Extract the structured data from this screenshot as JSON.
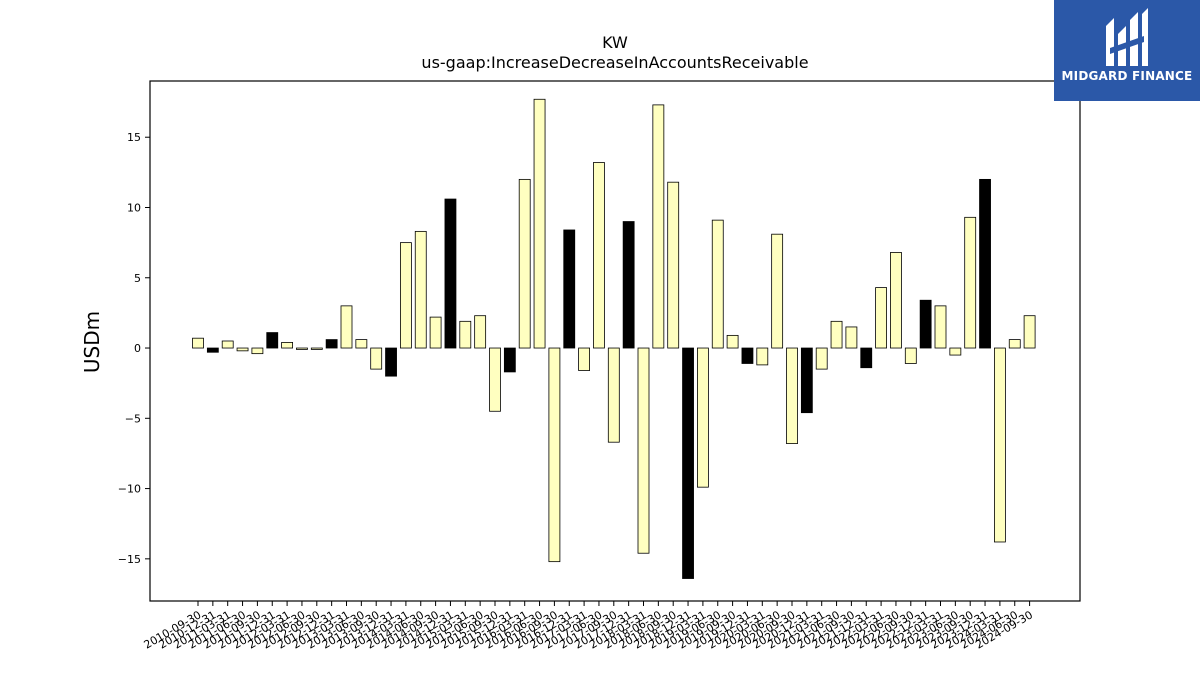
{
  "chart_data": {
    "type": "bar",
    "title": "KW",
    "subtitle": "us-gaap:IncreaseDecreaseInAccountsReceivable",
    "ylabel": "USDm",
    "xlabel": "",
    "ylim": [
      -18,
      19
    ],
    "yticks": [
      -15,
      -10,
      -5,
      0,
      5,
      10,
      15
    ],
    "grid": false,
    "colors": {
      "quarter": "#ffffc0",
      "annual": "#000000",
      "edge": "#000000"
    },
    "bars": [
      {
        "label": "2010-09-30",
        "value": 0.7,
        "kind": "quarter"
      },
      {
        "label": "2010-12-31",
        "value": -0.3,
        "kind": "annual"
      },
      {
        "label": "2011-03-31",
        "value": 0.5,
        "kind": "quarter"
      },
      {
        "label": "2011-06-30",
        "value": -0.2,
        "kind": "quarter"
      },
      {
        "label": "2011-09-30",
        "value": -0.4,
        "kind": "quarter"
      },
      {
        "label": "2011-12-31",
        "value": 1.1,
        "kind": "annual"
      },
      {
        "label": "2012-03-31",
        "value": 0.4,
        "kind": "quarter"
      },
      {
        "label": "2012-06-30",
        "value": -0.1,
        "kind": "quarter"
      },
      {
        "label": "2012-09-30",
        "value": -0.1,
        "kind": "quarter"
      },
      {
        "label": "2012-12-31",
        "value": 0.6,
        "kind": "annual"
      },
      {
        "label": "2013-03-31",
        "value": 3.0,
        "kind": "quarter"
      },
      {
        "label": "2013-06-30",
        "value": 0.6,
        "kind": "quarter"
      },
      {
        "label": "2013-09-30",
        "value": -1.5,
        "kind": "quarter"
      },
      {
        "label": "2013-12-31",
        "value": -2.0,
        "kind": "annual"
      },
      {
        "label": "2014-03-31",
        "value": 7.5,
        "kind": "quarter"
      },
      {
        "label": "2014-06-30",
        "value": 8.3,
        "kind": "quarter"
      },
      {
        "label": "2014-09-30",
        "value": 2.2,
        "kind": "quarter"
      },
      {
        "label": "2014-12-31",
        "value": 10.6,
        "kind": "annual"
      },
      {
        "label": "2015-03-31",
        "value": 1.9,
        "kind": "quarter"
      },
      {
        "label": "2015-06-30",
        "value": 2.3,
        "kind": "quarter"
      },
      {
        "label": "2015-09-30",
        "value": -4.5,
        "kind": "quarter"
      },
      {
        "label": "2015-12-31",
        "value": -1.7,
        "kind": "annual"
      },
      {
        "label": "2016-03-31",
        "value": 12.0,
        "kind": "quarter"
      },
      {
        "label": "2016-06-30",
        "value": 17.7,
        "kind": "quarter"
      },
      {
        "label": "2016-09-30",
        "value": -15.2,
        "kind": "quarter"
      },
      {
        "label": "2016-12-31",
        "value": 8.4,
        "kind": "annual"
      },
      {
        "label": "2017-03-31",
        "value": -1.6,
        "kind": "quarter"
      },
      {
        "label": "2017-06-30",
        "value": 13.2,
        "kind": "quarter"
      },
      {
        "label": "2017-09-30",
        "value": -6.7,
        "kind": "quarter"
      },
      {
        "label": "2017-12-31",
        "value": 9.0,
        "kind": "annual"
      },
      {
        "label": "2018-03-31",
        "value": -14.6,
        "kind": "quarter"
      },
      {
        "label": "2018-06-30",
        "value": 17.3,
        "kind": "quarter"
      },
      {
        "label": "2018-09-30",
        "value": 11.8,
        "kind": "quarter"
      },
      {
        "label": "2018-12-31",
        "value": -16.4,
        "kind": "annual"
      },
      {
        "label": "2019-03-31",
        "value": -9.9,
        "kind": "quarter"
      },
      {
        "label": "2019-06-30",
        "value": 9.1,
        "kind": "quarter"
      },
      {
        "label": "2019-09-30",
        "value": 0.9,
        "kind": "quarter"
      },
      {
        "label": "2019-12-31",
        "value": -1.1,
        "kind": "annual"
      },
      {
        "label": "2020-03-31",
        "value": -1.2,
        "kind": "quarter"
      },
      {
        "label": "2020-06-30",
        "value": 8.1,
        "kind": "quarter"
      },
      {
        "label": "2020-09-30",
        "value": -6.8,
        "kind": "quarter"
      },
      {
        "label": "2020-12-31",
        "value": -4.6,
        "kind": "annual"
      },
      {
        "label": "2021-03-31",
        "value": -1.5,
        "kind": "quarter"
      },
      {
        "label": "2021-06-30",
        "value": 1.9,
        "kind": "quarter"
      },
      {
        "label": "2021-09-30",
        "value": 1.5,
        "kind": "quarter"
      },
      {
        "label": "2021-12-31",
        "value": -1.4,
        "kind": "annual"
      },
      {
        "label": "2022-03-31",
        "value": 4.3,
        "kind": "quarter"
      },
      {
        "label": "2022-06-30",
        "value": 6.8,
        "kind": "quarter"
      },
      {
        "label": "2022-09-30",
        "value": -1.1,
        "kind": "quarter"
      },
      {
        "label": "2022-12-31",
        "value": 3.4,
        "kind": "annual"
      },
      {
        "label": "2023-03-31",
        "value": 3.0,
        "kind": "quarter"
      },
      {
        "label": "2023-06-30",
        "value": -0.5,
        "kind": "quarter"
      },
      {
        "label": "2023-09-30",
        "value": 9.3,
        "kind": "quarter"
      },
      {
        "label": "2023-12-31",
        "value": 12.0,
        "kind": "annual"
      },
      {
        "label": "2024-03-31",
        "value": -13.8,
        "kind": "quarter"
      },
      {
        "label": "2024-06-30",
        "value": 0.6,
        "kind": "quarter"
      },
      {
        "label": "2024-09-30",
        "value": 2.3,
        "kind": "quarter"
      }
    ]
  },
  "logo": {
    "text": "MIDGARD FINANCE",
    "icon": "midgard-logo-mark",
    "background": "#2b58a8"
  }
}
